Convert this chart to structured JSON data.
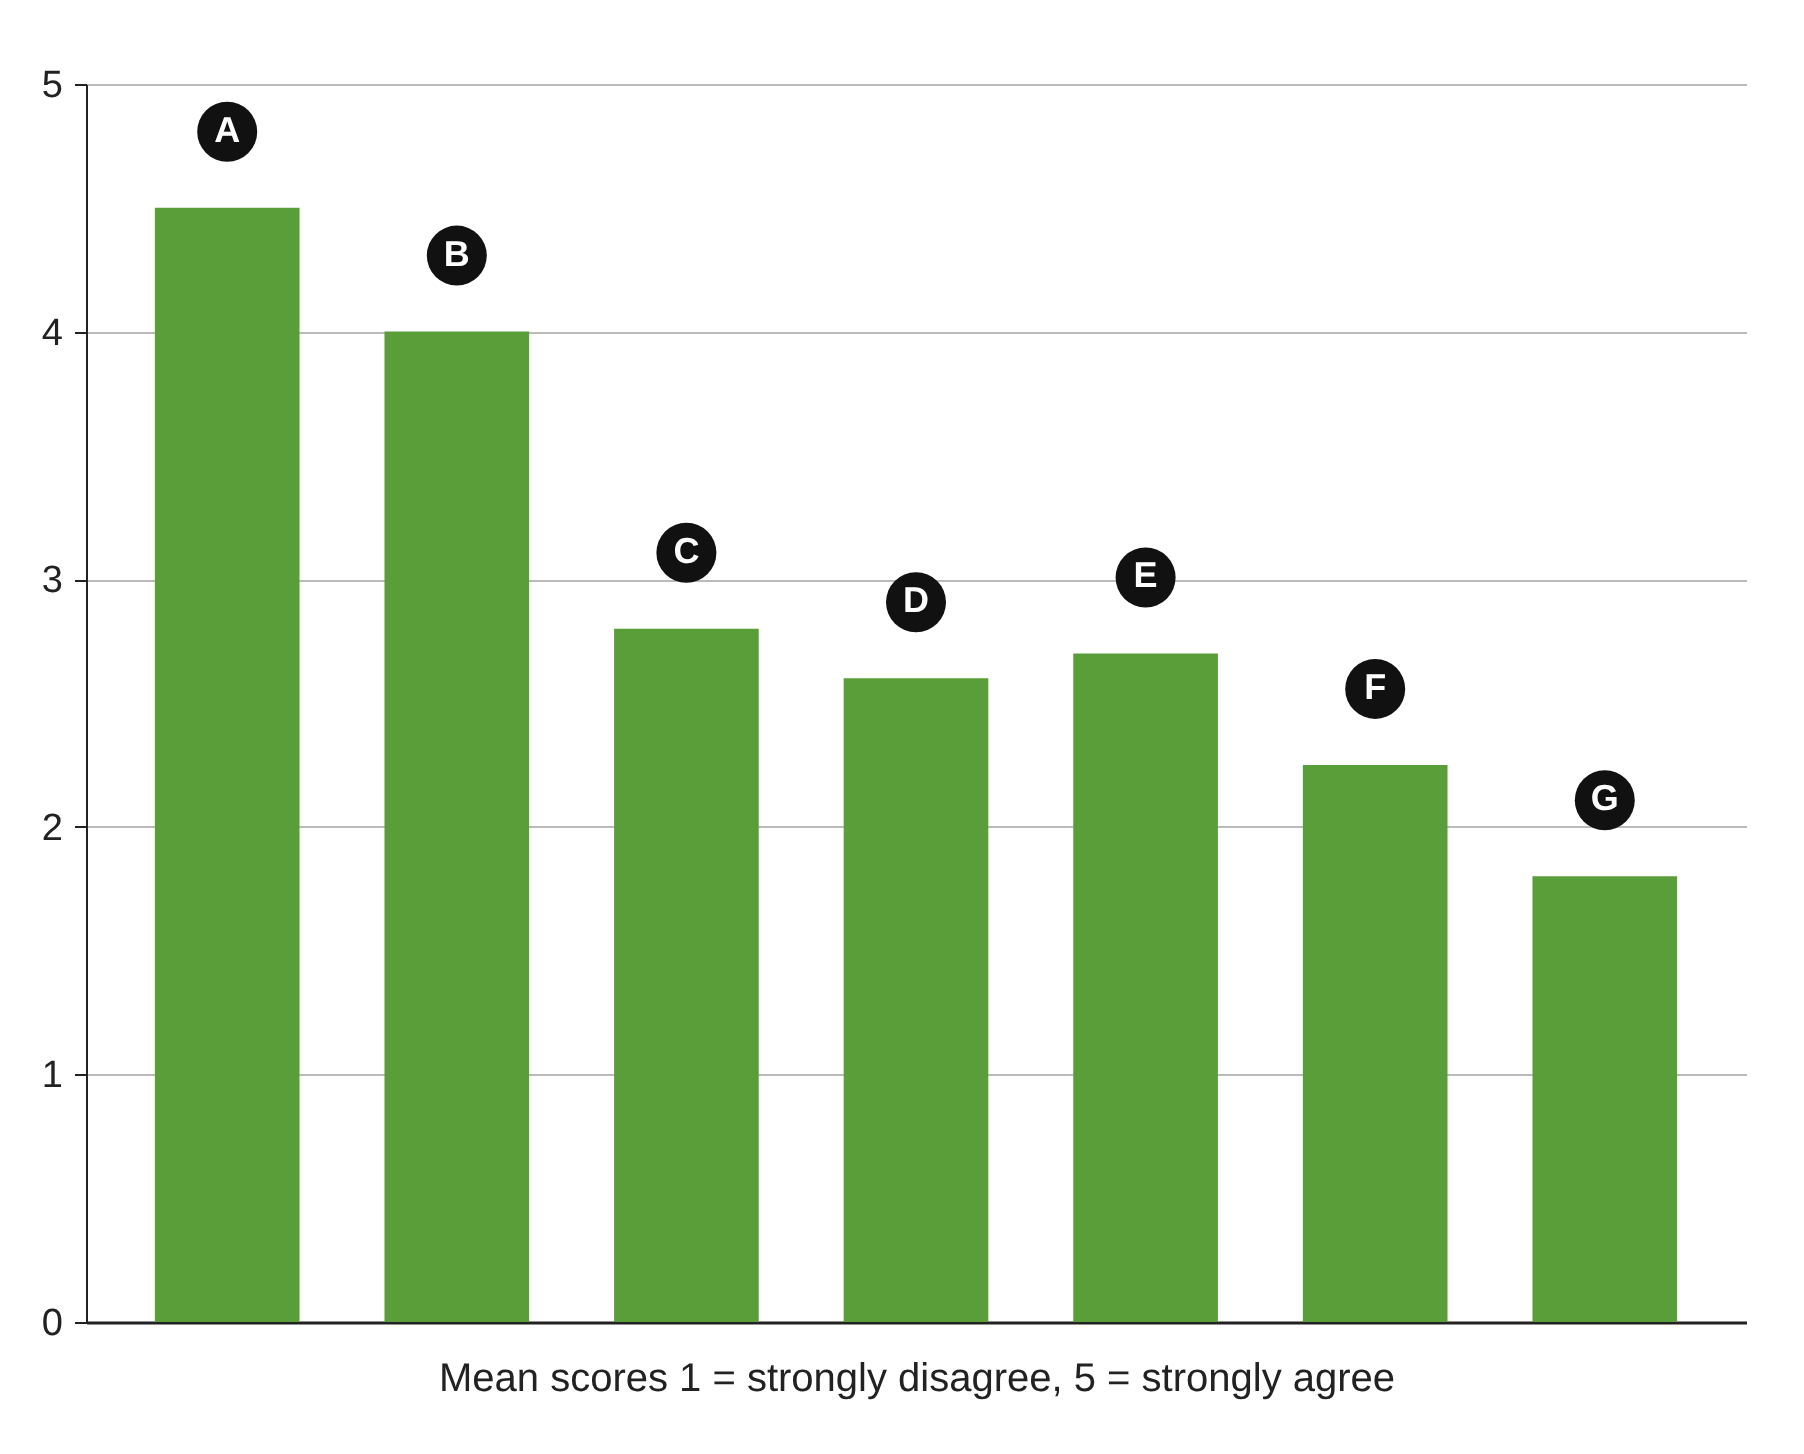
{
  "chart_data": {
    "type": "bar",
    "xlabel": "Mean scores  1 = strongly disagree, 5 = strongly agree",
    "categories": [
      "A",
      "B",
      "C",
      "D",
      "E",
      "F",
      "G"
    ],
    "values": [
      4.5,
      4.0,
      2.8,
      2.6,
      2.7,
      2.25,
      1.8
    ],
    "color": "#5a9e3a",
    "ylim": [
      0,
      5
    ],
    "yticks": [
      0,
      1,
      2,
      3,
      4,
      5
    ],
    "grid": "y"
  }
}
